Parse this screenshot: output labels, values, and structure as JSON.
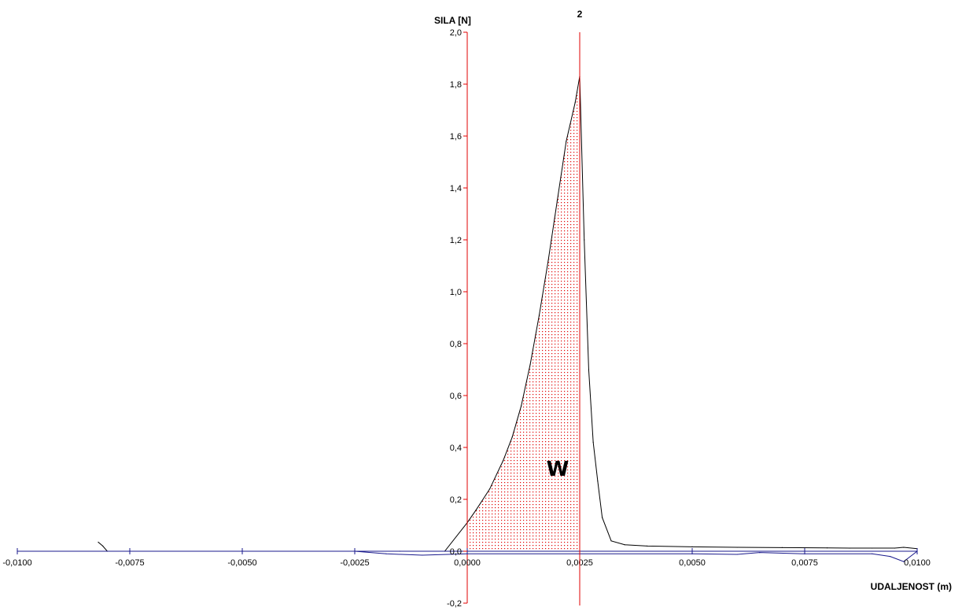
{
  "chart_data": {
    "type": "line",
    "title": "",
    "xlabel": "UDALJENOST (m)",
    "ylabel": "SILA [N]",
    "xlim": [
      -0.01,
      0.01
    ],
    "ylim": [
      -0.2,
      2.0
    ],
    "x_ticks": [
      {
        "value": -0.01,
        "label": "-0,0100"
      },
      {
        "value": -0.0075,
        "label": "-0,0075"
      },
      {
        "value": -0.005,
        "label": "-0,0050"
      },
      {
        "value": -0.0025,
        "label": "-0,0025"
      },
      {
        "value": 0.0,
        "label": "0,0000"
      },
      {
        "value": 0.0025,
        "label": "0,0025"
      },
      {
        "value": 0.005,
        "label": "0,0050"
      },
      {
        "value": 0.0075,
        "label": "0,0075"
      },
      {
        "value": 0.01,
        "label": "0,0100"
      }
    ],
    "y_ticks": [
      {
        "value": -0.2,
        "label": "-0,2"
      },
      {
        "value": 0.0,
        "label": "0,0"
      },
      {
        "value": 0.2,
        "label": "0,2"
      },
      {
        "value": 0.4,
        "label": "0,4"
      },
      {
        "value": 0.6,
        "label": "0,6"
      },
      {
        "value": 0.8,
        "label": "0,8"
      },
      {
        "value": 1.0,
        "label": "1,0"
      },
      {
        "value": 1.2,
        "label": "1,2"
      },
      {
        "value": 1.4,
        "label": "1,4"
      },
      {
        "value": 1.6,
        "label": "1,6"
      },
      {
        "value": 1.8,
        "label": "1,8"
      },
      {
        "value": 2.0,
        "label": "2,0"
      }
    ],
    "grid": false,
    "series": [
      {
        "color": "#000000",
        "x": [
          -0.0082,
          -0.0081,
          -0.008,
          -0.0075,
          -0.005,
          -0.0025,
          -0.0015,
          -0.0005,
          0.0,
          0.0002,
          0.0005,
          0.0008,
          0.001,
          0.0012,
          0.0014,
          0.0016,
          0.0018,
          0.002,
          0.0022,
          0.0024,
          0.0025,
          0.0026,
          0.0027,
          0.0028,
          0.0029,
          0.003,
          0.0032,
          0.0035,
          0.004,
          0.005,
          0.006,
          0.007,
          0.008,
          0.0085,
          0.009,
          0.0095,
          0.0097,
          0.01
        ],
        "y": [
          0.035,
          0.02,
          0.0,
          0.0,
          0.0,
          0.0,
          0.0,
          0.0,
          0.11,
          0.16,
          0.24,
          0.35,
          0.44,
          0.56,
          0.72,
          0.91,
          1.12,
          1.35,
          1.58,
          1.73,
          1.83,
          1.2,
          0.7,
          0.42,
          0.27,
          0.13,
          0.04,
          0.025,
          0.02,
          0.017,
          0.015,
          0.014,
          0.013,
          0.012,
          0.012,
          0.012,
          0.015,
          0.01
        ]
      },
      {
        "color": "#1a1a8c",
        "x": [
          -0.01,
          -0.0025,
          -0.0018,
          -0.001,
          0.0,
          0.0025,
          0.005,
          0.006,
          0.0065,
          0.0075,
          0.009,
          0.0094,
          0.0097,
          0.01
        ],
        "y": [
          0.0,
          0.0,
          -0.01,
          -0.015,
          -0.01,
          -0.01,
          -0.01,
          -0.012,
          -0.005,
          -0.01,
          -0.01,
          -0.02,
          -0.04,
          0.0
        ]
      }
    ],
    "reference_lines": [
      {
        "x": 0.0,
        "color": "#e00000",
        "label": ""
      },
      {
        "x": 0.0025,
        "color": "#e00000",
        "label": "2"
      }
    ],
    "shaded_region": {
      "x_from": 0.0,
      "x_to": 0.0025,
      "fill_color": "#e00000",
      "pattern": "dotted",
      "label": "W"
    }
  }
}
